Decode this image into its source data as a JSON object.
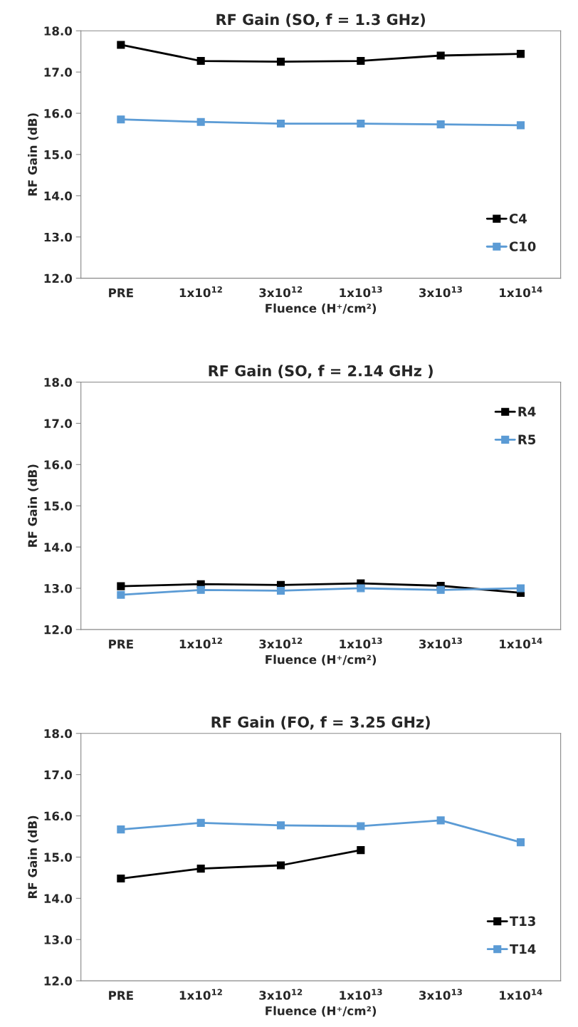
{
  "chart_data": [
    {
      "type": "line",
      "title": "RF Gain (SO, f = 1.3 GHz)",
      "xlabel": "Fluence (H⁺/cm²)",
      "ylabel": "RF Gain (dB)",
      "categories": [
        "PRE",
        "1x10$^{12}$",
        "3x10$^{12}$",
        "1x10$^{13}$",
        "3x10$^{13}$",
        "1x10$^{14}$"
      ],
      "series": [
        {
          "name": "C4",
          "color": "#000000",
          "values": [
            17.66,
            17.27,
            17.25,
            17.27,
            17.4,
            17.44
          ]
        },
        {
          "name": "C10",
          "color": "#5b9bd5",
          "values": [
            15.85,
            15.79,
            15.75,
            15.75,
            15.73,
            15.71
          ]
        }
      ],
      "ylim": [
        12,
        18
      ],
      "yticks": [
        {
          "value": 12,
          "label": "12.0"
        },
        {
          "value": 13,
          "label": "13.0"
        },
        {
          "value": 14,
          "label": "14.0"
        },
        {
          "value": 15,
          "label": "15.0"
        },
        {
          "value": 16,
          "label": "16.0"
        },
        {
          "value": 17,
          "label": "17.0"
        },
        {
          "value": 18,
          "label": "18.0"
        }
      ],
      "grid": false,
      "legend": "lower right",
      "marker": "square",
      "line_style": "solid"
    },
    {
      "type": "line",
      "title": "RF Gain (SO, f = 2.14 GHz )",
      "xlabel": "Fluence (H⁺/cm²)",
      "ylabel": "RF Gain (dB)",
      "categories": [
        "PRE",
        "1x10$^{12}$",
        "3x10$^{12}$",
        "1x10$^{13}$",
        "3x10$^{13}$",
        "1x10$^{14}$"
      ],
      "series": [
        {
          "name": "R4",
          "color": "#000000",
          "values": [
            13.05,
            13.1,
            13.08,
            13.12,
            13.06,
            12.89
          ]
        },
        {
          "name": "R5",
          "color": "#5b9bd5",
          "values": [
            12.84,
            12.96,
            12.94,
            13.0,
            12.96,
            13.0
          ]
        }
      ],
      "ylim": [
        12,
        18
      ],
      "yticks": [
        {
          "value": 12,
          "label": "12.0"
        },
        {
          "value": 13,
          "label": "13.0"
        },
        {
          "value": 14,
          "label": "14.0"
        },
        {
          "value": 15,
          "label": "15.0"
        },
        {
          "value": 16,
          "label": "16.0"
        },
        {
          "value": 17,
          "label": "17.0"
        },
        {
          "value": 18,
          "label": "18.0"
        }
      ],
      "grid": false,
      "legend": "upper right",
      "marker": "square",
      "line_style": "solid"
    },
    {
      "type": "line",
      "title": "RF Gain (FO, f = 3.25 GHz)",
      "xlabel": "Fluence (H⁺/cm²)",
      "ylabel": "RF Gain (dB)",
      "categories": [
        "PRE",
        "1x10$^{12}$",
        "3x10$^{12}$",
        "1x10$^{13}$",
        "3x10$^{13}$",
        "1x10$^{14}$"
      ],
      "series": [
        {
          "name": "T13",
          "color": "#000000",
          "values": [
            14.48,
            14.72,
            14.8,
            15.17,
            null,
            null
          ]
        },
        {
          "name": "T14",
          "color": "#5b9bd5",
          "values": [
            15.67,
            15.83,
            15.77,
            15.75,
            15.89,
            15.36
          ]
        }
      ],
      "ylim": [
        12,
        18
      ],
      "yticks": [
        {
          "value": 12,
          "label": "12.0"
        },
        {
          "value": 13,
          "label": "13.0"
        },
        {
          "value": 14,
          "label": "14.0"
        },
        {
          "value": 15,
          "label": "15.0"
        },
        {
          "value": 16,
          "label": "16.0"
        },
        {
          "value": 17,
          "label": "17.0"
        },
        {
          "value": 18,
          "label": "18.0"
        }
      ],
      "grid": false,
      "legend": "lower right",
      "marker": "square",
      "line_style": "solid"
    }
  ]
}
